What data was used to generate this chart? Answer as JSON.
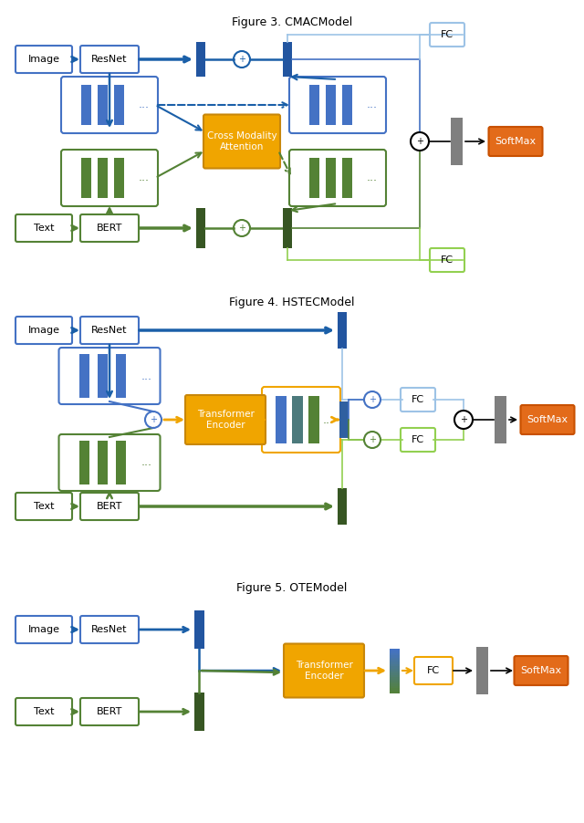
{
  "fig_width": 6.4,
  "fig_height": 9.02,
  "bg_color": "#ffffff",
  "blue_dark": "#1a5fa8",
  "blue_mid": "#4472c4",
  "blue_light": "#9dc3e6",
  "green_dark": "#375623",
  "green_mid": "#548235",
  "green_light": "#92d050",
  "orange": "#e36b1a",
  "orange_yellow": "#f0a500",
  "gray": "#7f7f7f",
  "fig3_title": "Figure 3. CMACModel",
  "fig4_title": "Figure 4. HSTECModel",
  "fig5_title": "Figure 5. OTEModel"
}
